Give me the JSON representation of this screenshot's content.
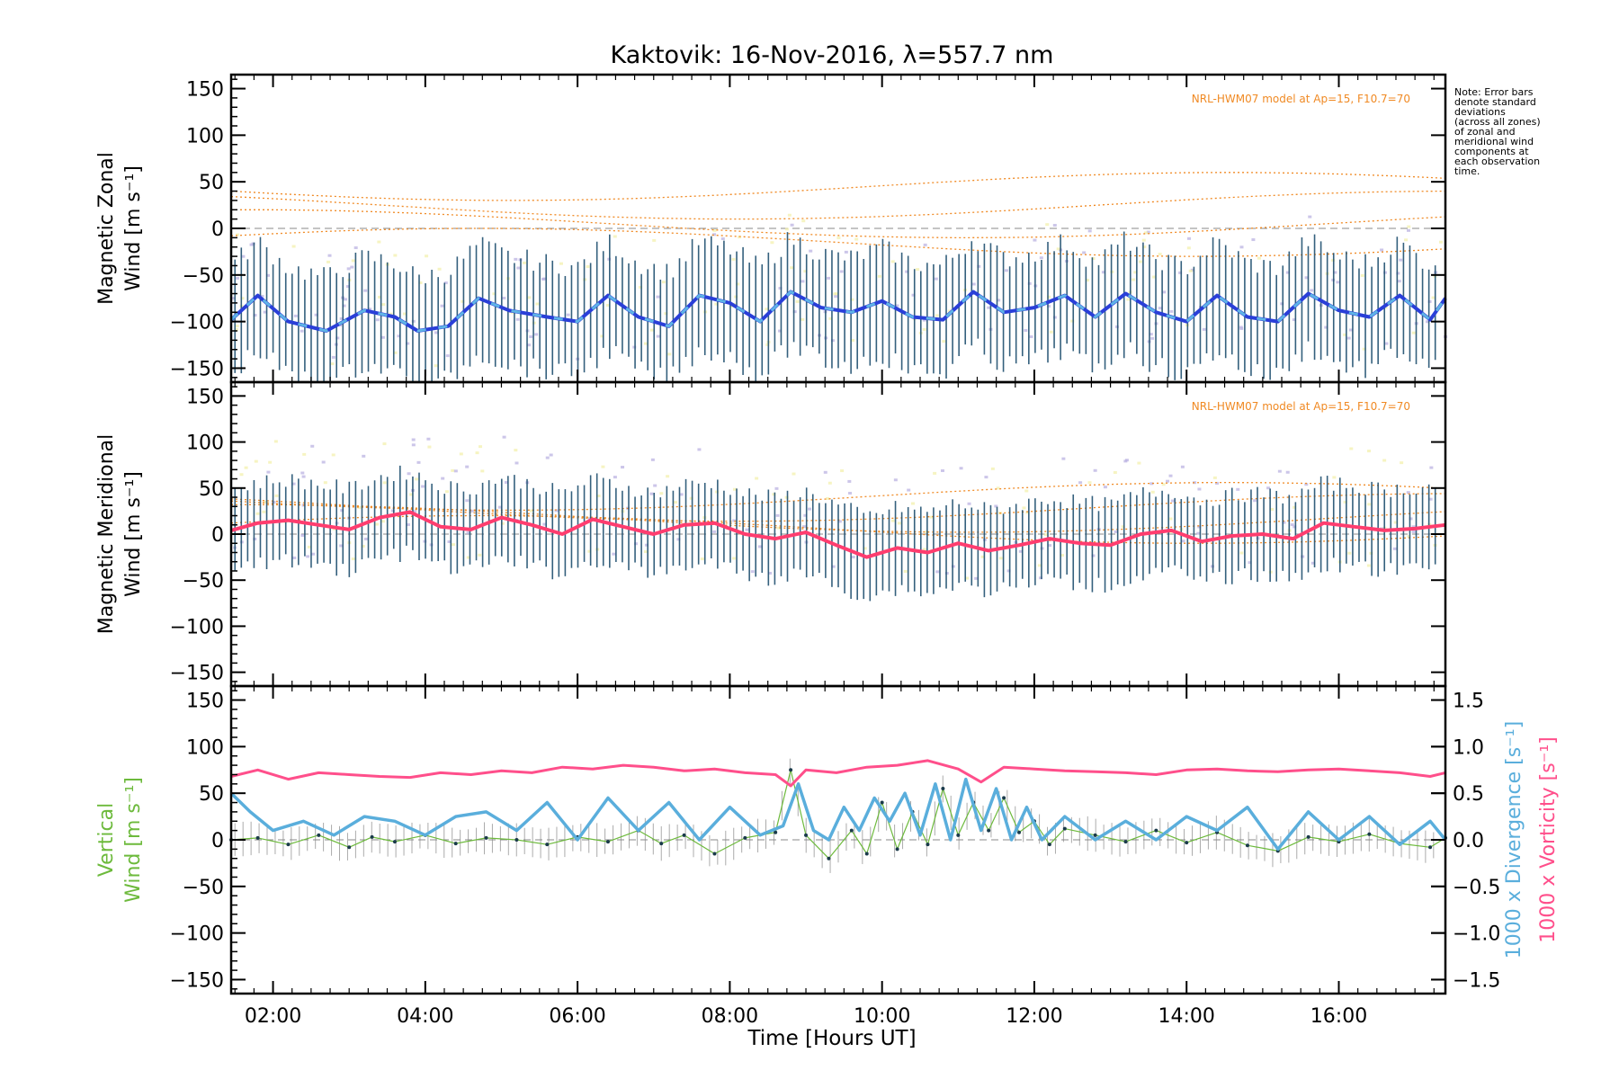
{
  "title": "Kaktovik: 16-Nov-2016, λ=557.7 nm",
  "note": [
    "Note: Error bars",
    "denote standard",
    "deviations",
    "(across all zones)",
    "of zonal and",
    "meridional wind",
    "components at",
    "each observation",
    "time."
  ],
  "model_label": "NRL-HWM07 model at Ap=15, F10.7=70",
  "colors": {
    "zonal": "#2a3fd8",
    "zonal_light": "#5fb4e6",
    "meridional": "#ff3d6f",
    "vertical": "#6dba3c",
    "divergence": "#5aaedc",
    "vorticity": "#ff4f8b",
    "errorbar": "#1f4f6f",
    "model": "#f08a24",
    "scatter_purple": "#b7aee0",
    "scatter_yellow": "#f2f0a8"
  },
  "chart_data": [
    {
      "type": "line",
      "panel": "zonal",
      "ylabel": [
        "Magnetic Zonal",
        "Wind [m s⁻¹]"
      ],
      "ylim": [
        -165,
        165
      ],
      "xlim": [
        1.45,
        17.4
      ],
      "yticks": [
        "150",
        "100",
        "50",
        "0",
        "−50",
        "−100",
        "−150"
      ],
      "series": [
        {
          "x": [
            1.45,
            1.8,
            2.2,
            2.7,
            3.2,
            3.6,
            3.9,
            4.3,
            4.7,
            5.1,
            5.6,
            6.0,
            6.4,
            6.8,
            7.2,
            7.6,
            8.0,
            8.4,
            8.8,
            9.2,
            9.6,
            10.0,
            10.4,
            10.8,
            11.2,
            11.6,
            12.0,
            12.4,
            12.8,
            13.2,
            13.6,
            14.0,
            14.4,
            14.8,
            15.2,
            15.6,
            16.0,
            16.4,
            16.8,
            17.2,
            17.4
          ],
          "y": [
            -98,
            -72,
            -100,
            -110,
            -88,
            -95,
            -110,
            -105,
            -75,
            -88,
            -95,
            -100,
            -72,
            -95,
            -105,
            -72,
            -80,
            -100,
            -68,
            -85,
            -90,
            -78,
            -95,
            -98,
            -68,
            -90,
            -85,
            -72,
            -95,
            -70,
            -90,
            -100,
            -72,
            -95,
            -100,
            -70,
            -88,
            -95,
            -72,
            -98,
            -75
          ]
        }
      ],
      "errorbar": 55
    },
    {
      "type": "line",
      "panel": "meridional",
      "ylabel": [
        "Magnetic Meridional",
        "Wind [m s⁻¹]"
      ],
      "ylim": [
        -165,
        165
      ],
      "xlim": [
        1.45,
        17.4
      ],
      "yticks": [
        "150",
        "100",
        "50",
        "0",
        "−50",
        "−100",
        "−150"
      ],
      "series": [
        {
          "x": [
            1.45,
            1.8,
            2.2,
            2.6,
            3.0,
            3.4,
            3.8,
            4.2,
            4.6,
            5.0,
            5.4,
            5.8,
            6.2,
            6.6,
            7.0,
            7.4,
            7.8,
            8.2,
            8.6,
            9.0,
            9.4,
            9.8,
            10.2,
            10.6,
            11.0,
            11.4,
            11.8,
            12.2,
            12.6,
            13.0,
            13.4,
            13.8,
            14.2,
            14.6,
            15.0,
            15.4,
            15.8,
            16.2,
            16.6,
            17.0,
            17.4
          ],
          "y": [
            4,
            12,
            15,
            10,
            5,
            18,
            24,
            8,
            5,
            18,
            10,
            0,
            16,
            8,
            0,
            10,
            12,
            0,
            -5,
            2,
            -12,
            -25,
            -15,
            -20,
            -10,
            -18,
            -12,
            -5,
            -10,
            -12,
            0,
            4,
            -8,
            -2,
            0,
            -5,
            12,
            8,
            4,
            6,
            10
          ]
        }
      ],
      "errorbar": 42
    },
    {
      "type": "line",
      "panel": "vertical",
      "ylabel": [
        "Vertical",
        "Wind [m s⁻¹]"
      ],
      "ylim": [
        -165,
        165
      ],
      "xlim": [
        1.45,
        17.4
      ],
      "xlabel": "Time [Hours UT]",
      "xticks": [
        "02:00",
        "04:00",
        "06:00",
        "08:00",
        "10:00",
        "12:00",
        "14:00",
        "16:00"
      ],
      "xtick_values": [
        2,
        4,
        6,
        8,
        10,
        12,
        14,
        16
      ],
      "yticks": [
        "150",
        "100",
        "50",
        "0",
        "−50",
        "−100",
        "−150"
      ],
      "y2label": [
        "1000 x Divergence [s⁻¹]",
        "1000 x Vorticity [s⁻¹]"
      ],
      "y2lim": [
        -1.65,
        1.65
      ],
      "y2ticks": [
        "1.5",
        "1.0",
        "0.5",
        "0.0",
        "−0.5",
        "−1.0",
        "−1.5"
      ],
      "series": [
        {
          "name": "Vertical",
          "x": [
            1.45,
            1.8,
            2.2,
            2.6,
            3.0,
            3.3,
            3.6,
            4.0,
            4.4,
            4.8,
            5.2,
            5.6,
            6.0,
            6.4,
            6.8,
            7.1,
            7.4,
            7.8,
            8.2,
            8.6,
            8.8,
            9.0,
            9.3,
            9.6,
            9.8,
            10.0,
            10.2,
            10.4,
            10.6,
            10.8,
            11.0,
            11.2,
            11.4,
            11.6,
            11.8,
            12.0,
            12.2,
            12.4,
            12.8,
            13.2,
            13.6,
            14.0,
            14.4,
            14.8,
            15.2,
            15.6,
            16.0,
            16.4,
            16.8,
            17.2,
            17.4
          ],
          "y": [
            0,
            2,
            -5,
            5,
            -8,
            3,
            -2,
            5,
            -4,
            2,
            0,
            -5,
            3,
            -2,
            10,
            -4,
            5,
            -15,
            2,
            8,
            75,
            5,
            -20,
            10,
            -15,
            40,
            -10,
            30,
            -5,
            55,
            5,
            40,
            10,
            45,
            8,
            20,
            -5,
            12,
            5,
            -2,
            10,
            -3,
            8,
            -6,
            -12,
            3,
            -2,
            6,
            -4,
            -8,
            2
          ]
        },
        {
          "name": "1000 x Divergence",
          "axis": "right",
          "x": [
            1.45,
            1.7,
            2.0,
            2.4,
            2.8,
            3.2,
            3.6,
            4.0,
            4.4,
            4.8,
            5.2,
            5.6,
            6.0,
            6.4,
            6.8,
            7.2,
            7.6,
            8.0,
            8.4,
            8.7,
            8.9,
            9.1,
            9.3,
            9.5,
            9.7,
            9.9,
            10.1,
            10.3,
            10.5,
            10.7,
            10.9,
            11.1,
            11.3,
            11.5,
            11.7,
            11.9,
            12.1,
            12.4,
            12.8,
            13.2,
            13.6,
            14.0,
            14.4,
            14.8,
            15.2,
            15.6,
            16.0,
            16.4,
            16.8,
            17.2,
            17.4
          ],
          "y": [
            0.5,
            0.3,
            0.1,
            0.2,
            0.05,
            0.25,
            0.2,
            0.05,
            0.25,
            0.3,
            0.1,
            0.4,
            0.0,
            0.45,
            0.1,
            0.4,
            0.0,
            0.35,
            0.05,
            0.15,
            0.6,
            0.1,
            0.0,
            0.35,
            0.1,
            0.45,
            0.2,
            0.5,
            0.05,
            0.6,
            0.0,
            0.65,
            0.1,
            0.55,
            0.0,
            0.35,
            0.0,
            0.25,
            0.0,
            0.2,
            0.0,
            0.25,
            0.1,
            0.35,
            -0.1,
            0.3,
            0.0,
            0.25,
            -0.05,
            0.2,
            0.0
          ]
        },
        {
          "name": "1000 x Vorticity",
          "axis": "right",
          "x": [
            1.45,
            1.8,
            2.2,
            2.6,
            3.0,
            3.4,
            3.8,
            4.2,
            4.6,
            5.0,
            5.4,
            5.8,
            6.2,
            6.6,
            7.0,
            7.4,
            7.8,
            8.2,
            8.6,
            8.8,
            9.0,
            9.4,
            9.8,
            10.2,
            10.6,
            11.0,
            11.3,
            11.6,
            12.0,
            12.4,
            12.8,
            13.2,
            13.6,
            14.0,
            14.4,
            14.8,
            15.2,
            15.6,
            16.0,
            16.4,
            16.8,
            17.2,
            17.4
          ],
          "y": [
            0.68,
            0.75,
            0.65,
            0.72,
            0.7,
            0.68,
            0.67,
            0.72,
            0.7,
            0.74,
            0.72,
            0.78,
            0.76,
            0.8,
            0.78,
            0.74,
            0.76,
            0.72,
            0.7,
            0.58,
            0.75,
            0.72,
            0.78,
            0.8,
            0.85,
            0.76,
            0.62,
            0.78,
            0.76,
            0.74,
            0.73,
            0.72,
            0.7,
            0.75,
            0.76,
            0.74,
            0.73,
            0.75,
            0.76,
            0.74,
            0.72,
            0.68,
            0.72
          ]
        }
      ],
      "errorbar": 15
    }
  ]
}
